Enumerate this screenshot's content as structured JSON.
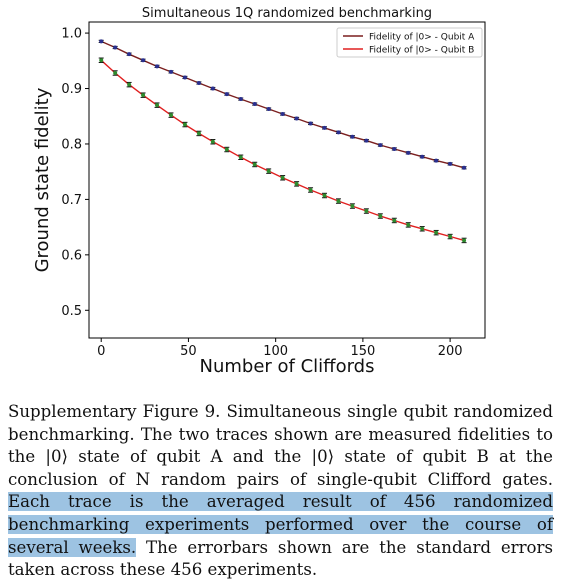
{
  "chart_data": {
    "type": "scatter",
    "title": "Simultaneous 1Q randomized benchmarking",
    "xlabel": "Number of Cliffords",
    "ylabel": "Ground state fidelity",
    "xlim": [
      -7,
      220
    ],
    "ylim": [
      0.45,
      1.02
    ],
    "xticks": [
      0,
      50,
      100,
      150,
      200
    ],
    "yticks": [
      0.5,
      0.6,
      0.7,
      0.8,
      0.9,
      1.0
    ],
    "xtick_labels": [
      "0",
      "50",
      "100",
      "150",
      "200"
    ],
    "ytick_labels": [
      "0.5",
      "0.6",
      "0.7",
      "0.8",
      "0.9",
      "1.0"
    ],
    "legend_position": "top-right",
    "grid": false,
    "x": [
      0,
      8,
      16,
      24,
      32,
      40,
      48,
      56,
      64,
      72,
      80,
      88,
      96,
      104,
      112,
      120,
      128,
      136,
      144,
      152,
      160,
      168,
      176,
      184,
      192,
      200,
      208
    ],
    "series": [
      {
        "name": "Fidelity of |0> - Qubit A",
        "line_color": "#7b1f1f",
        "marker_color": "#2a2f8f",
        "values": [
          0.985,
          0.974,
          0.962,
          0.951,
          0.94,
          0.93,
          0.92,
          0.91,
          0.9,
          0.89,
          0.881,
          0.872,
          0.863,
          0.854,
          0.846,
          0.837,
          0.829,
          0.821,
          0.813,
          0.806,
          0.798,
          0.791,
          0.784,
          0.777,
          0.77,
          0.764,
          0.757
        ],
        "errors": [
          0.002,
          0.002,
          0.002,
          0.002,
          0.002,
          0.002,
          0.002,
          0.002,
          0.002,
          0.002,
          0.002,
          0.002,
          0.002,
          0.002,
          0.002,
          0.002,
          0.002,
          0.002,
          0.002,
          0.002,
          0.002,
          0.002,
          0.002,
          0.002,
          0.002,
          0.002,
          0.002
        ]
      },
      {
        "name": "Fidelity of |0> - Qubit B",
        "line_color": "#e02020",
        "marker_color": "#2e8b2e",
        "values": [
          0.951,
          0.928,
          0.907,
          0.888,
          0.87,
          0.852,
          0.835,
          0.819,
          0.804,
          0.79,
          0.776,
          0.763,
          0.751,
          0.739,
          0.728,
          0.717,
          0.707,
          0.697,
          0.688,
          0.679,
          0.67,
          0.662,
          0.654,
          0.647,
          0.64,
          0.633,
          0.626
        ],
        "errors": [
          0.004,
          0.004,
          0.004,
          0.004,
          0.004,
          0.004,
          0.004,
          0.004,
          0.004,
          0.004,
          0.004,
          0.004,
          0.004,
          0.004,
          0.004,
          0.004,
          0.004,
          0.004,
          0.004,
          0.004,
          0.004,
          0.004,
          0.004,
          0.004,
          0.004,
          0.004,
          0.004
        ]
      }
    ]
  },
  "caption": {
    "before": "Supplementary Figure 9. Simultaneous single qubit randomized benchmarking. The two traces shown are measured fidelities to the |0⟩ state of qubit A and the |0⟩ state of qubit B at the conclusion of N random pairs of single-qubit Clifford gates. ",
    "highlighted": "Each trace is the averaged result of 456 randomized benchmarking experiments performed over the course of several weeks.",
    "after": " The errorbars shown are the standard errors taken across these 456 experiments."
  },
  "colors": {
    "highlight": "#9dc3e2"
  }
}
